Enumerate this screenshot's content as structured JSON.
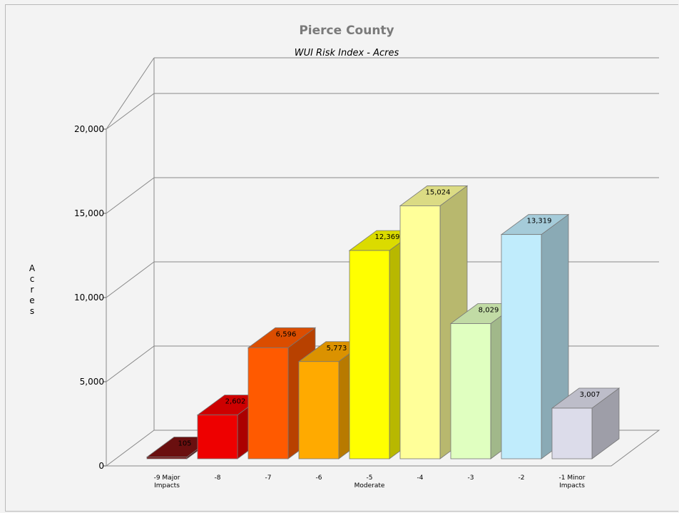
{
  "chart_data": {
    "type": "bar",
    "title": "Pierce County",
    "subtitle": "WUI Risk Index - Acres",
    "xlabel": "",
    "ylabel": "Acres",
    "ylim": [
      0,
      20000
    ],
    "yticks": [
      "0",
      "5,000",
      "10,000",
      "15,000",
      "20,000"
    ],
    "grid": true,
    "legend": "none",
    "categories": [
      [
        "-9 Major",
        "Impacts"
      ],
      [
        "-8"
      ],
      [
        "-7"
      ],
      [
        "-6"
      ],
      [
        "-5",
        "Moderate"
      ],
      [
        "-4"
      ],
      [
        "-3"
      ],
      [
        "-2"
      ],
      [
        "-1 Minor",
        "Impacts"
      ]
    ],
    "values": [
      105,
      2602,
      6596,
      5773,
      12369,
      15024,
      8029,
      13319,
      3007
    ],
    "value_labels": [
      "105",
      "2,602",
      "6,596",
      "5,773",
      "12,369",
      "15,024",
      "8,029",
      "13,319",
      "3,007"
    ],
    "colors": [
      "#7b1212",
      "#ee0000",
      "#ff5a00",
      "#ffaa00",
      "#ffff00",
      "#ffff99",
      "#e0ffc0",
      "#c0ecfc",
      "#dcdcea"
    ]
  }
}
